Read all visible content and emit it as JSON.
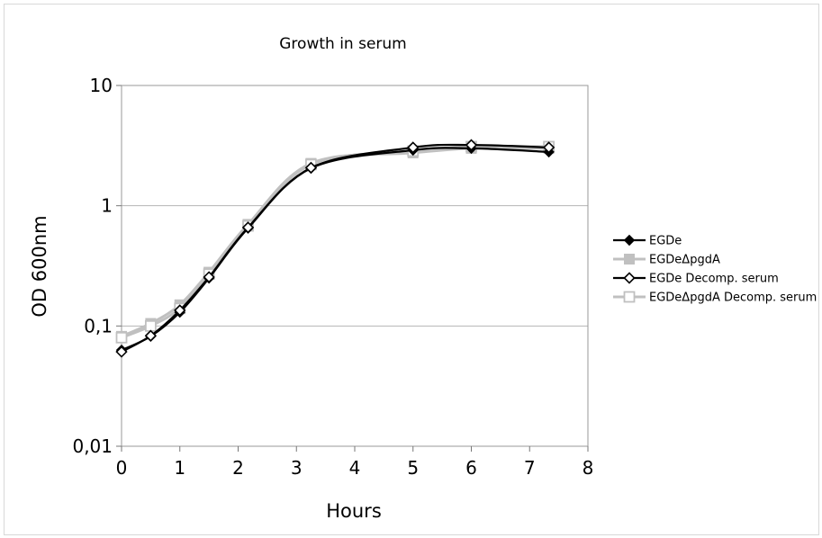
{
  "chart_data": {
    "type": "line",
    "title": "Growth in serum",
    "xlabel": "Hours",
    "ylabel": "OD 600nm",
    "xlim": [
      0,
      8
    ],
    "ylim": [
      0.01,
      10
    ],
    "yscale": "log",
    "grid": "horizontal major",
    "legend_position": "right",
    "x_ticks": [
      "0",
      "1",
      "2",
      "3",
      "4",
      "5",
      "6",
      "7",
      "8"
    ],
    "y_ticks": [
      {
        "value": 10,
        "label": "10"
      },
      {
        "value": 1,
        "label": "1"
      },
      {
        "value": 0.1,
        "label": "0,1"
      },
      {
        "value": 0.01,
        "label": "0,01"
      }
    ],
    "x": [
      0,
      0.5,
      1,
      1.5,
      2.17,
      3.25,
      5,
      6,
      7.33
    ],
    "series": [
      {
        "name": "EGDe",
        "color": "#000000",
        "marker": "diamond-filled",
        "values": [
          0.063,
          0.082,
          0.13,
          0.25,
          0.65,
          2.05,
          2.9,
          3.0,
          2.8
        ]
      },
      {
        "name": "EGDeΔpgdA",
        "color": "#c0c0c0",
        "marker": "square-filled",
        "values": [
          0.082,
          0.105,
          0.15,
          0.28,
          0.7,
          2.25,
          2.75,
          3.0,
          3.0
        ]
      },
      {
        "name": "EGDe Decomp. serum",
        "color": "#000000",
        "marker": "diamond-open",
        "values": [
          0.061,
          0.083,
          0.135,
          0.255,
          0.66,
          2.07,
          3.05,
          3.2,
          3.05
        ]
      },
      {
        "name": "EGDeΔpgdA Decomp. serum",
        "color": "#c0c0c0",
        "marker": "square-open",
        "values": [
          0.08,
          0.1,
          0.14,
          0.27,
          0.68,
          2.2,
          2.85,
          3.1,
          3.1
        ]
      }
    ]
  }
}
